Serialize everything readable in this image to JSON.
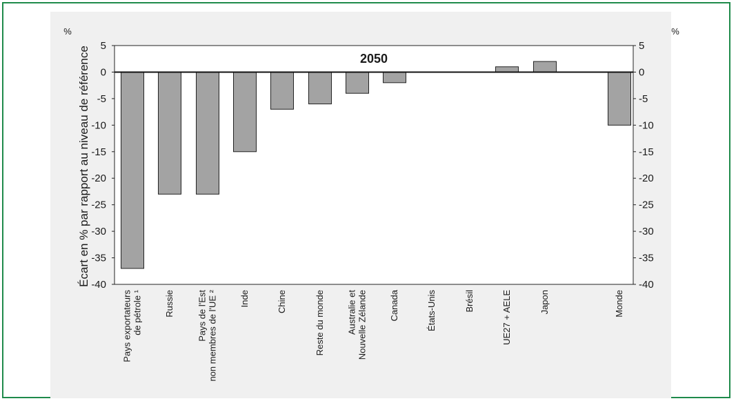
{
  "chart_data": {
    "type": "bar",
    "title": "2050",
    "ylabel": "Écart en % par rapport au niveau de référence",
    "unit_left": "%",
    "unit_right": "%",
    "ylim": [
      -40,
      5
    ],
    "yticks": [
      5,
      0,
      -5,
      -10,
      -15,
      -20,
      -25,
      -30,
      -35,
      -40
    ],
    "grid": false,
    "categories": [
      [
        "Pays exportateurs",
        "de pétrole ¹"
      ],
      [
        "Russie"
      ],
      [
        "Pays de l'Est",
        "non membres de l'UE ²"
      ],
      [
        "Inde"
      ],
      [
        "Chine"
      ],
      [
        "Reste du monde"
      ],
      [
        "Australie et",
        "Nouvelle Zélande"
      ],
      [
        "Canada"
      ],
      [
        "États-Unis"
      ],
      [
        "Brésil"
      ],
      [
        "UE27 + AELE"
      ],
      [
        "Japon"
      ],
      [
        "Monde"
      ]
    ],
    "values": [
      -37,
      -23,
      -23,
      -15,
      -7,
      -6,
      -4,
      -2,
      0,
      0,
      1,
      2,
      -10
    ],
    "colors": {
      "bar": "#a3a3a3",
      "bar_stroke": "#222222",
      "panel": "#f0f0f0"
    }
  }
}
